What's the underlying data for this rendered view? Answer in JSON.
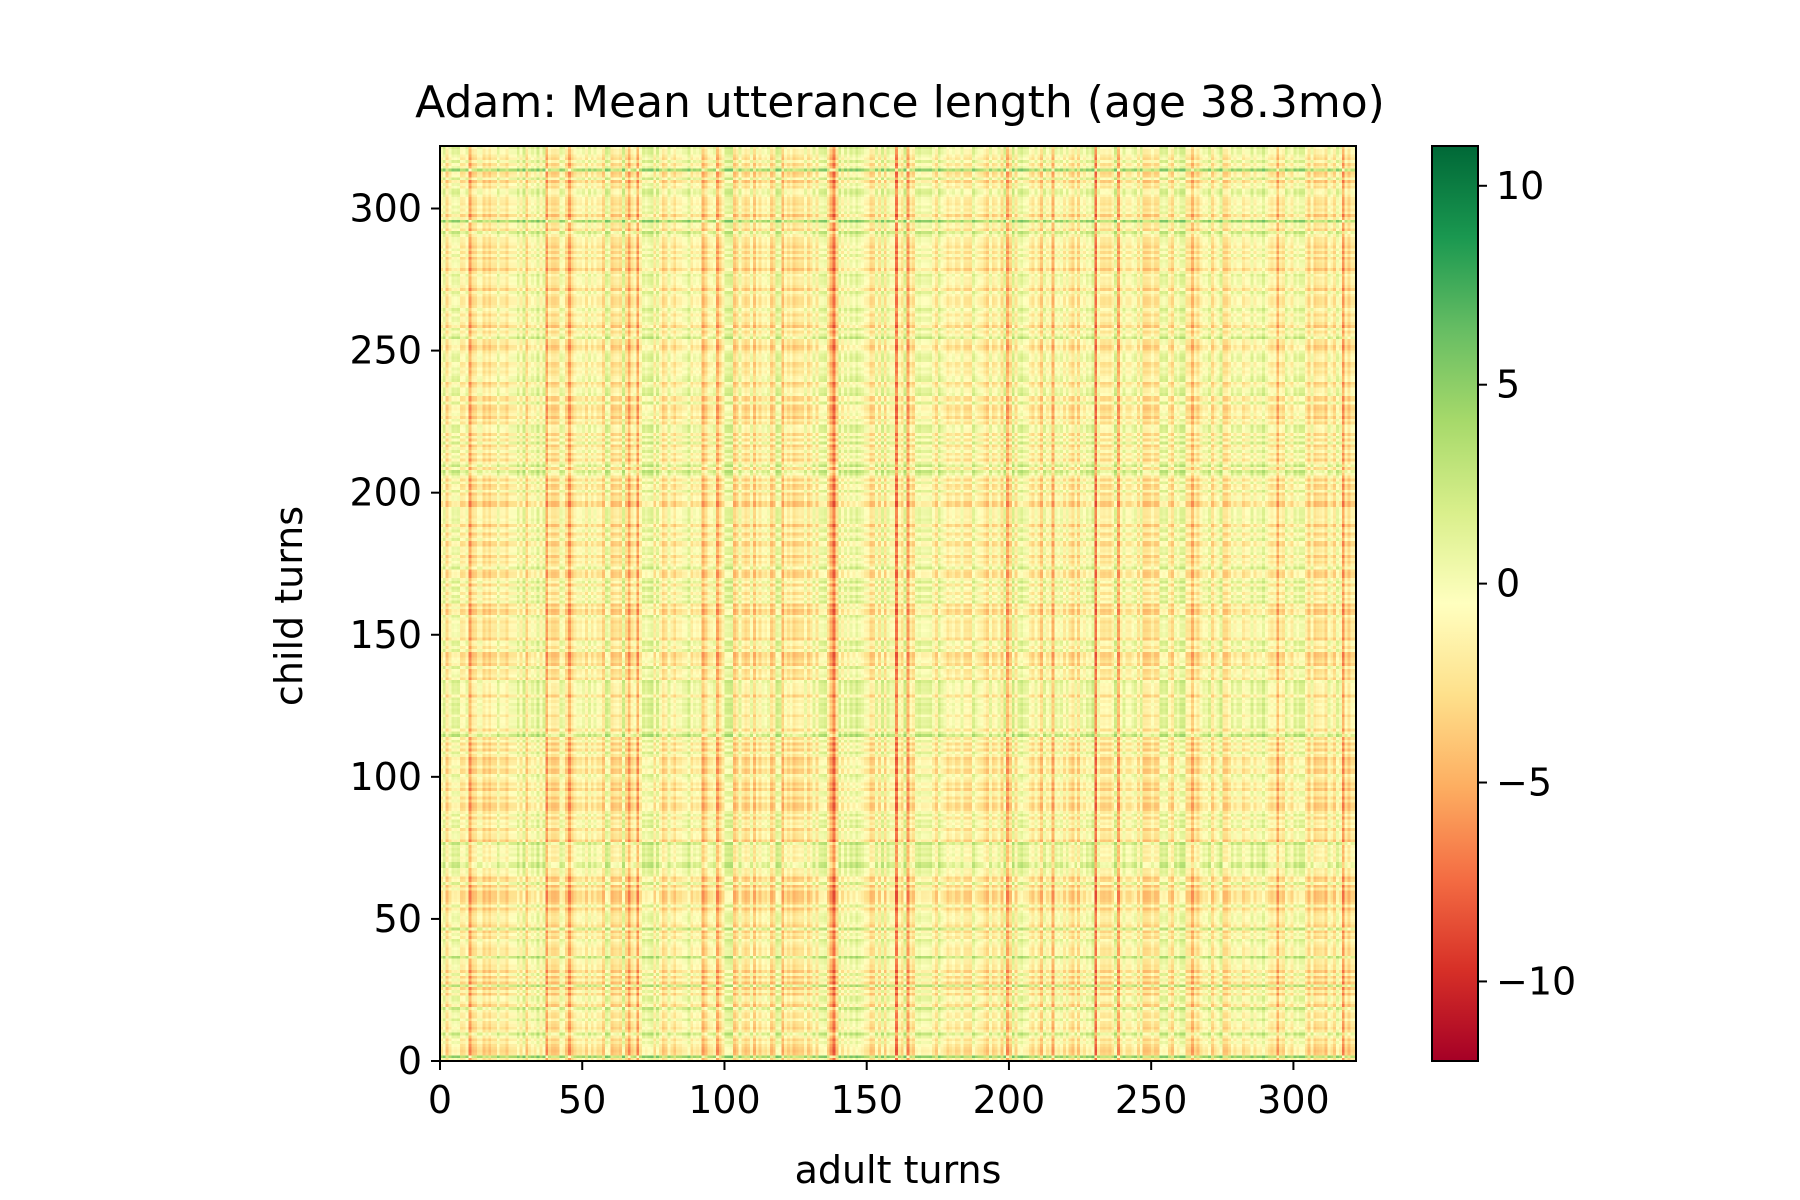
{
  "chart_data": {
    "type": "heatmap",
    "title": "Adam: Mean utterance length (age 38.3mo)",
    "xlabel": "adult turns",
    "ylabel": "child turns",
    "x_extent": [
      0,
      322
    ],
    "y_extent": [
      0,
      322
    ],
    "xticks": [
      0,
      50,
      100,
      150,
      200,
      250,
      300
    ],
    "yticks": [
      0,
      50,
      100,
      150,
      200,
      250,
      300
    ],
    "xtick_labels": [
      "0",
      "50",
      "100",
      "150",
      "200",
      "250",
      "300"
    ],
    "ytick_labels": [
      "0",
      "50",
      "100",
      "150",
      "200",
      "250",
      "300"
    ],
    "colormap": "RdYlGn",
    "color_range": [
      -12,
      11
    ],
    "colorbar_ticks": [
      10,
      5,
      0,
      -5,
      -10
    ],
    "colorbar_tick_labels": [
      "10",
      "5",
      "0",
      "−5",
      "−10"
    ],
    "colors": {
      "low": "#a50026",
      "mid": "#ffffbf",
      "high": "#006837"
    },
    "strong_negative_columns": [
      138,
      160,
      230
    ],
    "strong_positive_rows": [
      1,
      295,
      313
    ],
    "grid": false
  }
}
